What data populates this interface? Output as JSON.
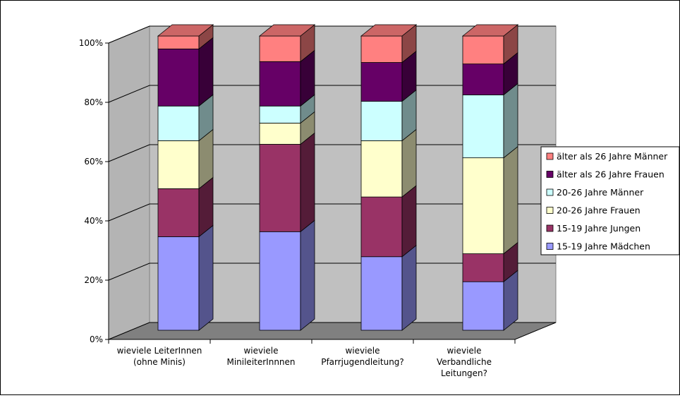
{
  "chart_data": {
    "type": "bar",
    "stacked": "percent",
    "three_d": true,
    "title": "",
    "xlabel": "",
    "ylabel": "",
    "ylim": [
      0,
      100
    ],
    "y_ticks": [
      "0%",
      "20%",
      "40%",
      "60%",
      "80%",
      "100%"
    ],
    "grid": true,
    "legend_position": "right",
    "categories": [
      [
        "wieviele LeiterInnen",
        "(ohne Minis)"
      ],
      [
        "wieviele",
        "MinileiterInnnen"
      ],
      [
        "wieviele",
        "Pfarrjugendleitung?"
      ],
      [
        "wieviele",
        "Verbandliche",
        "Leitungen?"
      ]
    ],
    "series": [
      {
        "name": "15-19 Jahre Mädchen",
        "color": "#9999ff",
        "values": [
          31.8,
          33.5,
          25.0,
          16.5
        ]
      },
      {
        "name": "15-19 Jahre Jungen",
        "color": "#993366",
        "values": [
          16.3,
          29.7,
          20.3,
          9.5
        ]
      },
      {
        "name": "20-26 Jahre Frauen",
        "color": "#ffffcc",
        "values": [
          16.3,
          7.2,
          19.1,
          32.6
        ]
      },
      {
        "name": "20-26 Jahre Männer",
        "color": "#ccffff",
        "values": [
          11.8,
          5.8,
          13.4,
          21.4
        ]
      },
      {
        "name": "älter als 26 Jahre Frauen",
        "color": "#660066",
        "values": [
          19.4,
          15.1,
          13.2,
          10.5
        ]
      },
      {
        "name": "älter als 26 Jahre Männer",
        "color": "#ff8080",
        "values": [
          4.4,
          8.7,
          9.0,
          9.5
        ]
      }
    ]
  }
}
